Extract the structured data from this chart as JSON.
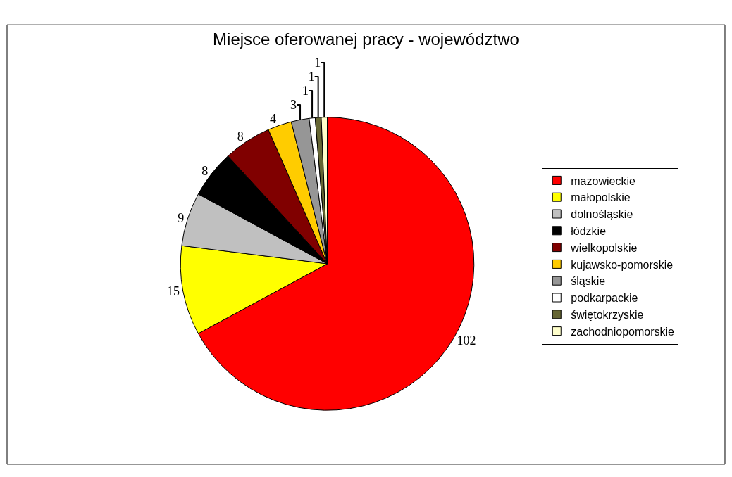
{
  "chart_data": {
    "type": "pie",
    "title": "Miejsce oferowanej pracy - województwo",
    "categories": [
      "mazowieckie",
      "małopolskie",
      "dolnośląskie",
      "łódzkie",
      "wielkopolskie",
      "kujawsko-pomorskie",
      "śląskie",
      "podkarpackie",
      "świętokrzyskie",
      "zachodniopomorskie"
    ],
    "values": [
      102,
      15,
      9,
      8,
      8,
      4,
      3,
      1,
      1,
      1
    ],
    "colors": [
      "#ff0000",
      "#ffff00",
      "#c0c0c0",
      "#000000",
      "#800000",
      "#ffcc00",
      "#969696",
      "#ffffff",
      "#666633",
      "#ffffcc"
    ],
    "data_labels": true,
    "legend": "right"
  }
}
